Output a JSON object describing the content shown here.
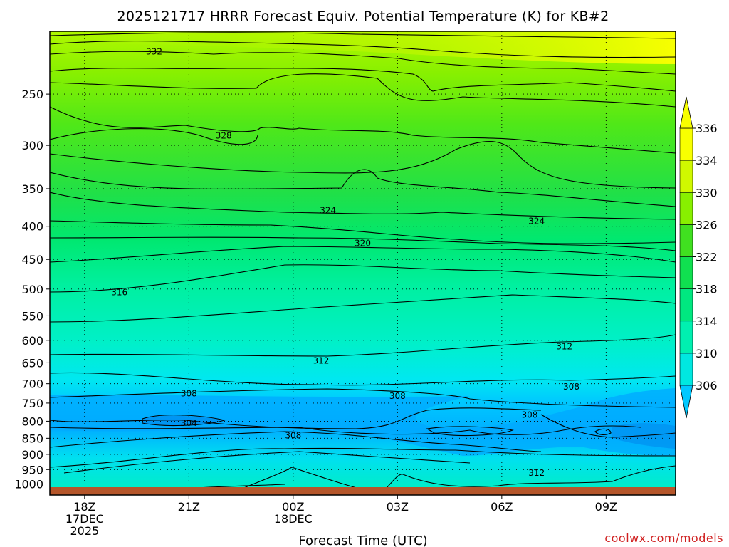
{
  "chart_data": {
    "type": "contour",
    "title": "2025121717 HRRR Forecast Equiv. Potential Temperature (K) for KB#2",
    "xlabel": "Forecast Time (UTC)",
    "ylabel": "",
    "credit": "coolwx.com/models",
    "x_ticks": [
      {
        "hour": 18,
        "lines": [
          "18Z",
          "17DEC",
          "2025"
        ]
      },
      {
        "hour": 21,
        "lines": [
          "21Z"
        ]
      },
      {
        "hour": 24,
        "lines": [
          "00Z",
          "18DEC"
        ]
      },
      {
        "hour": 27,
        "lines": [
          "03Z"
        ]
      },
      {
        "hour": 30,
        "lines": [
          "06Z"
        ]
      },
      {
        "hour": 33,
        "lines": [
          "09Z"
        ]
      }
    ],
    "xlim": [
      17,
      35
    ],
    "pressure_levels": [
      250,
      300,
      350,
      400,
      450,
      500,
      550,
      600,
      650,
      700,
      750,
      800,
      850,
      900,
      950,
      1000
    ],
    "ylim": [
      1040,
      200
    ],
    "y_scale": "log",
    "grid": true,
    "colorbar": {
      "labels": [
        "336",
        "334",
        "330",
        "326",
        "322",
        "318",
        "314",
        "310",
        "306"
      ],
      "levels": [
        306,
        310,
        314,
        318,
        322,
        326,
        330,
        334,
        336
      ],
      "colors": [
        "#00c8ff",
        "#00e8e0",
        "#00f0b0",
        "#00e880",
        "#10e050",
        "#40e020",
        "#88f000",
        "#d0f800",
        "#f8ff00"
      ]
    },
    "contour_labels": [
      {
        "text": "332",
        "hour": 20.0,
        "p": 215
      },
      {
        "text": "328",
        "hour": 22.0,
        "p": 290
      },
      {
        "text": "324",
        "hour": 25.0,
        "p": 378
      },
      {
        "text": "324",
        "hour": 31.0,
        "p": 393
      },
      {
        "text": "320",
        "hour": 26.0,
        "p": 425
      },
      {
        "text": "316",
        "hour": 19.0,
        "p": 506
      },
      {
        "text": "312",
        "hour": 24.8,
        "p": 645
      },
      {
        "text": "312",
        "hour": 31.8,
        "p": 613
      },
      {
        "text": "308",
        "hour": 21.0,
        "p": 725
      },
      {
        "text": "308",
        "hour": 27.0,
        "p": 731
      },
      {
        "text": "308",
        "hour": 32.0,
        "p": 708
      },
      {
        "text": "308",
        "hour": 30.8,
        "p": 782
      },
      {
        "text": "308",
        "hour": 24.0,
        "p": 842
      },
      {
        "text": "304",
        "hour": 21.0,
        "p": 805
      },
      {
        "text": "312",
        "hour": 31.0,
        "p": 962
      }
    ],
    "ground_color": "#b5562a"
  }
}
